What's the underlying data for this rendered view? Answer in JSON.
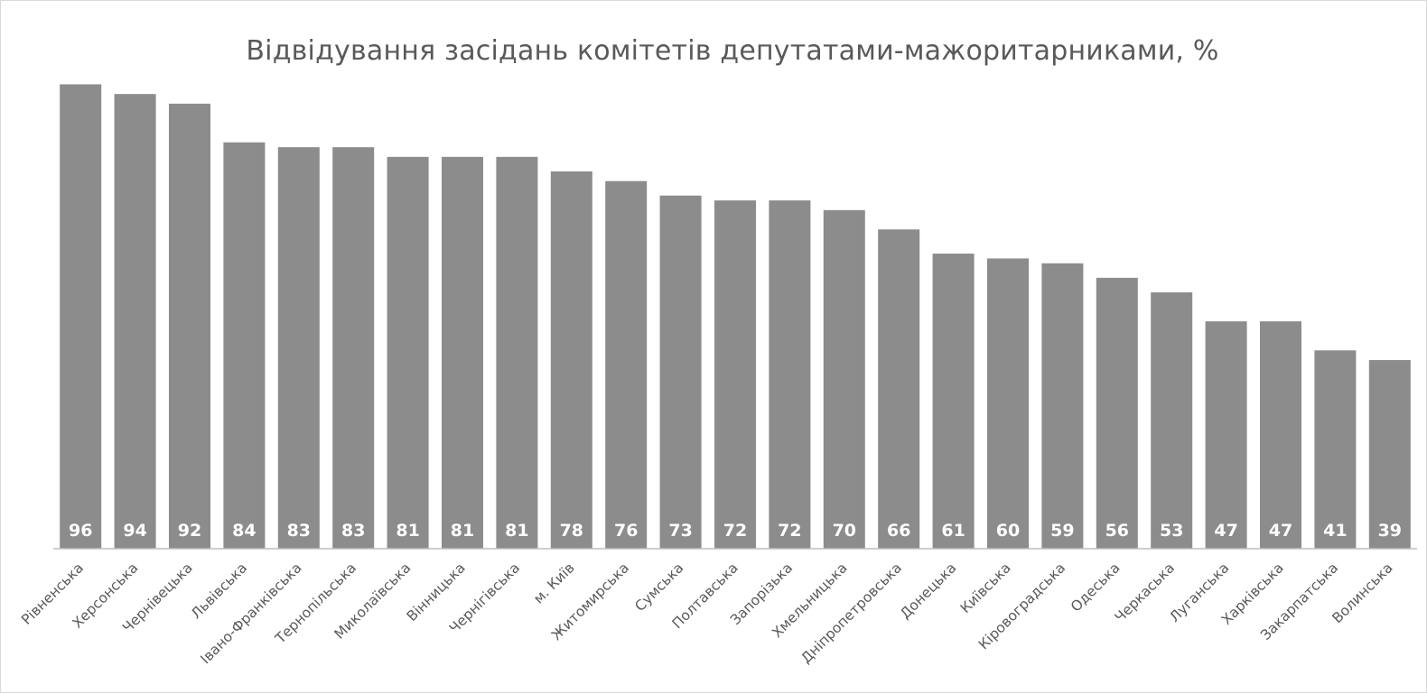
{
  "chart_data": {
    "type": "bar",
    "title": "Відвідування засідань комітетів депутатами-мажоритарниками, %",
    "xlabel": "",
    "ylabel": "",
    "categories": [
      "Рівненська",
      "Херсонська",
      "Чернівецька",
      "Львівська",
      "Івано-Франківська",
      "Тернопільська",
      "Миколаївська",
      "Вінницька",
      "Чернігівська",
      "м. Київ",
      "Житомирська",
      "Сумська",
      "Полтавська",
      "Запорізька",
      "Хмельницька",
      "Дніпропетровська",
      "Донецька",
      "Київська",
      "Кіровоградська",
      "Одеська",
      "Черкаська",
      "Луганська",
      "Харківська",
      "Закарпатська",
      "Волинська"
    ],
    "values": [
      96,
      94,
      92,
      84,
      83,
      83,
      81,
      81,
      81,
      78,
      76,
      73,
      72,
      72,
      70,
      66,
      61,
      60,
      59,
      56,
      53,
      47,
      47,
      41,
      39
    ],
    "ylim": [
      0,
      100
    ],
    "grid": false,
    "legend": "none",
    "data_labels": "inside-base",
    "bar_color": "#8c8c8c",
    "label_color": "#ffffff"
  }
}
